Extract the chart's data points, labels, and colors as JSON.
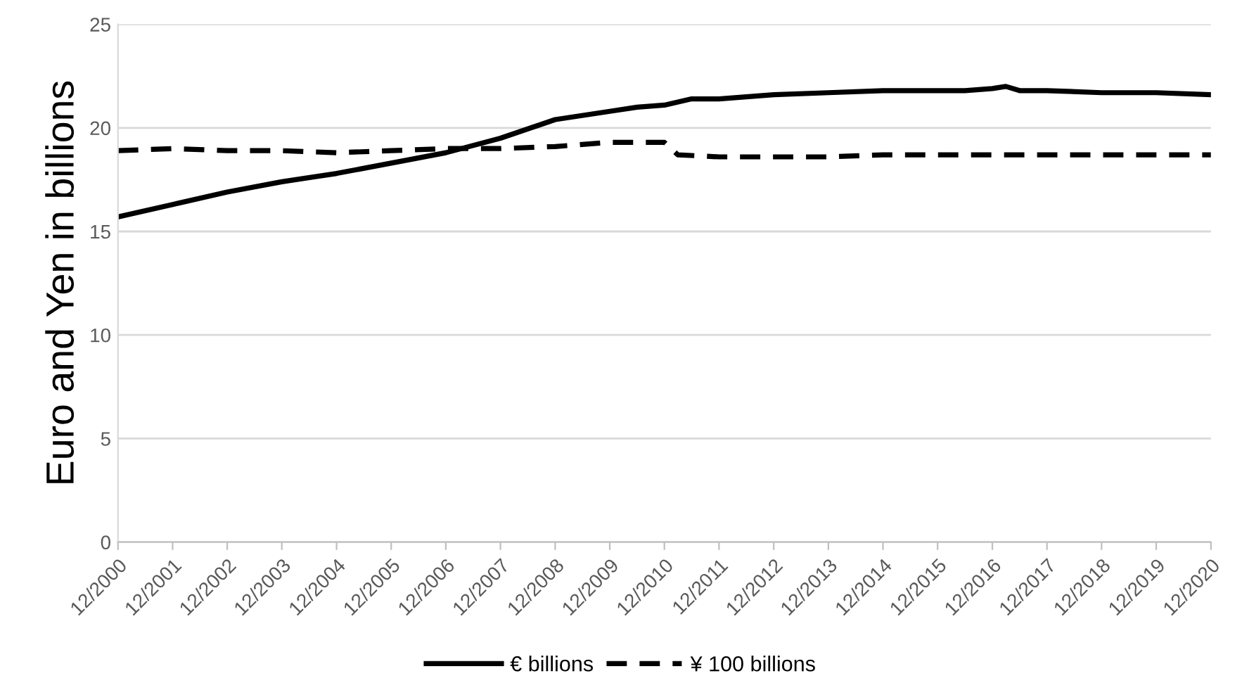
{
  "chart_data": {
    "type": "line",
    "ylabel": "Euro and Yen in billions",
    "ylim": [
      0,
      25
    ],
    "yticks": [
      0,
      5,
      10,
      15,
      20,
      25
    ],
    "xlim": [
      "2000-12",
      "2020-12"
    ],
    "xticks": [
      {
        "value": "2000-12",
        "label": "12/2000"
      },
      {
        "value": "2001-12",
        "label": "12/2001"
      },
      {
        "value": "2002-12",
        "label": "12/2002"
      },
      {
        "value": "2003-12",
        "label": "12/2003"
      },
      {
        "value": "2004-12",
        "label": "12/2004"
      },
      {
        "value": "2005-12",
        "label": "12/2005"
      },
      {
        "value": "2006-12",
        "label": "12/2006"
      },
      {
        "value": "2007-12",
        "label": "12/2007"
      },
      {
        "value": "2008-12",
        "label": "12/2008"
      },
      {
        "value": "2009-12",
        "label": "12/2009"
      },
      {
        "value": "2010-12",
        "label": "12/2010"
      },
      {
        "value": "2011-12",
        "label": "12/2011"
      },
      {
        "value": "2012-12",
        "label": "12/2012"
      },
      {
        "value": "2013-12",
        "label": "12/2013"
      },
      {
        "value": "2014-12",
        "label": "12/2014"
      },
      {
        "value": "2015-12",
        "label": "12/2015"
      },
      {
        "value": "2016-12",
        "label": "12/2016"
      },
      {
        "value": "2017-12",
        "label": "12/2017"
      },
      {
        "value": "2018-12",
        "label": "12/2018"
      },
      {
        "value": "2019-12",
        "label": "12/2019"
      },
      {
        "value": "2020-12",
        "label": "12/2020"
      }
    ],
    "grid": "y",
    "legend": "bottom",
    "marker": "none",
    "series": [
      {
        "name": "€ billions",
        "color": "#000000",
        "line_style": "solid",
        "x": [
          "2000-12",
          "2001-12",
          "2002-12",
          "2003-12",
          "2004-12",
          "2005-12",
          "2006-12",
          "2007-12",
          "2008-12",
          "2009-12",
          "2010-06",
          "2010-12",
          "2011-06",
          "2011-12",
          "2012-12",
          "2013-12",
          "2014-12",
          "2015-12",
          "2016-06",
          "2016-12",
          "2017-03",
          "2017-06",
          "2017-12",
          "2018-12",
          "2019-12",
          "2020-12"
        ],
        "values": [
          15.7,
          16.3,
          16.9,
          17.4,
          17.8,
          18.3,
          18.8,
          19.5,
          20.4,
          20.8,
          21.0,
          21.1,
          21.4,
          21.4,
          21.6,
          21.7,
          21.8,
          21.8,
          21.8,
          21.9,
          22.0,
          21.8,
          21.8,
          21.7,
          21.7,
          21.6
        ]
      },
      {
        "name": "¥ 100 billions",
        "color": "#000000",
        "line_style": "dashed",
        "x": [
          "2000-12",
          "2001-12",
          "2002-12",
          "2003-12",
          "2004-12",
          "2005-12",
          "2006-12",
          "2007-12",
          "2008-12",
          "2009-12",
          "2010-12",
          "2011-03",
          "2011-12",
          "2012-12",
          "2013-12",
          "2014-12",
          "2015-12",
          "2016-12",
          "2017-12",
          "2018-12",
          "2019-12",
          "2020-12"
        ],
        "values": [
          18.9,
          19.0,
          18.9,
          18.9,
          18.8,
          18.9,
          19.0,
          19.0,
          19.1,
          19.3,
          19.3,
          18.7,
          18.6,
          18.6,
          18.6,
          18.7,
          18.7,
          18.7,
          18.7,
          18.7,
          18.7,
          18.7
        ]
      }
    ]
  }
}
